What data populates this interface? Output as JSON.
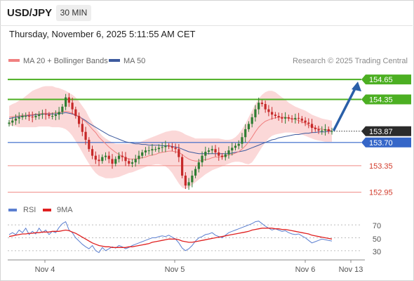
{
  "header": {
    "symbol": "USD/JPY",
    "timeframe": "30 MIN",
    "timestamp": "Thursday, November 6, 2025 5:11:55 AM CET"
  },
  "colors": {
    "price_up": "#2e7d32",
    "price_down": "#c62828",
    "bollinger_fill": "#fbd4d4",
    "ma20": "#f08080",
    "ma50": "#3d5a9e",
    "resistance": "#4caf22",
    "support": "#f08a84",
    "pivot": "#3566c8",
    "current": "#2b2b2b",
    "arrow": "#2a5fa8",
    "rsi": "#5b7fd0",
    "rsi_ma": "#e02020"
  },
  "chart_data": [
    {
      "type": "line",
      "title": "USD/JPY",
      "attribution": "Research © 2025 Trading Central",
      "legend": [
        {
          "label": "MA 20 + Bollinger Bands",
          "color": "#f08080"
        },
        {
          "label": "MA 50",
          "color": "#3d5a9e"
        }
      ],
      "legend_position": "top-left",
      "x_ticks": [
        "Nov 4",
        "Nov 5",
        "Nov 6",
        "Nov 13"
      ],
      "ylim": [
        152.85,
        154.8
      ],
      "levels": [
        {
          "value": 154.65,
          "label": "154.65",
          "kind": "resistance"
        },
        {
          "value": 154.35,
          "label": "154.35",
          "kind": "resistance"
        },
        {
          "value": 153.87,
          "label": "153.87",
          "kind": "current"
        },
        {
          "value": 153.7,
          "label": "153.70",
          "kind": "pivot"
        },
        {
          "value": 153.35,
          "label": "153.35",
          "kind": "support"
        },
        {
          "value": 152.95,
          "label": "152.95",
          "kind": "support"
        }
      ],
      "forecast_arrow": {
        "from": 153.87,
        "to": 154.65
      },
      "series": [
        {
          "name": "USD/JPY",
          "kind": "close",
          "values": [
            154.0,
            154.03,
            154.06,
            154.08,
            154.1,
            154.1,
            154.09,
            154.08,
            154.1,
            154.12,
            154.13,
            154.12,
            154.1,
            154.1,
            154.12,
            154.16,
            154.24,
            154.38,
            154.3,
            154.2,
            154.1,
            153.98,
            153.86,
            153.74,
            153.6,
            153.5,
            153.44,
            153.42,
            153.48,
            153.5,
            153.45,
            153.38,
            153.45,
            153.5,
            153.48,
            153.42,
            153.38,
            153.4,
            153.45,
            153.5,
            153.55,
            153.58,
            153.58,
            153.6,
            153.6,
            153.62,
            153.63,
            153.65,
            153.64,
            153.62,
            153.6,
            153.48,
            153.2,
            153.05,
            153.1,
            153.2,
            153.3,
            153.4,
            153.5,
            153.56,
            153.58,
            153.6,
            153.55,
            153.5,
            153.48,
            153.52,
            153.58,
            153.62,
            153.65,
            153.68,
            153.78,
            153.9,
            153.98,
            154.08,
            154.2,
            154.3,
            154.28,
            154.2,
            154.16,
            154.12,
            154.1,
            154.08,
            154.06,
            154.08,
            154.06,
            154.05,
            154.07,
            154.06,
            154.03,
            154.0,
            153.98,
            153.92,
            153.9,
            153.88,
            153.88,
            153.9,
            153.87,
            153.87
          ]
        },
        {
          "name": "MA 20",
          "kind": "ma20",
          "values": [
            154.08,
            154.09,
            154.1,
            154.1,
            154.11,
            154.11,
            154.12,
            154.12,
            154.13,
            154.13,
            154.14,
            154.14,
            154.14,
            154.14,
            154.15,
            154.15,
            154.16,
            154.17,
            154.16,
            154.14,
            154.12,
            154.09,
            154.05,
            154.01,
            153.96,
            153.9,
            153.85,
            153.78,
            153.73,
            153.68,
            153.63,
            153.59,
            153.55,
            153.52,
            153.49,
            153.47,
            153.45,
            153.45,
            153.45,
            153.46,
            153.47,
            153.48,
            153.5,
            153.51,
            153.52,
            153.54,
            153.55,
            153.56,
            153.57,
            153.57,
            153.56,
            153.55,
            153.52,
            153.48,
            153.45,
            153.43,
            153.42,
            153.42,
            153.43,
            153.44,
            153.45,
            153.47,
            153.48,
            153.48,
            153.49,
            153.5,
            153.51,
            153.52,
            153.54,
            153.56,
            153.6,
            153.65,
            153.71,
            153.78,
            153.86,
            153.93,
            153.98,
            154.02,
            154.04,
            154.06,
            154.07,
            154.08,
            154.08,
            154.08,
            154.07,
            154.06,
            154.05,
            154.03,
            154.01,
            153.99,
            153.96,
            153.94,
            153.92,
            153.91,
            153.9,
            153.89,
            153.88,
            153.88
          ]
        },
        {
          "name": "MA 50",
          "kind": "ma50",
          "values": [
            154.06,
            154.07,
            154.08,
            154.09,
            154.1,
            154.1,
            154.11,
            154.11,
            154.12,
            154.12,
            154.13,
            154.13,
            154.13,
            154.13,
            154.13,
            154.14,
            154.14,
            154.15,
            154.14,
            154.13,
            154.11,
            154.09,
            154.06,
            154.03,
            153.99,
            153.96,
            153.93,
            153.9,
            153.87,
            153.84,
            153.81,
            153.79,
            153.77,
            153.75,
            153.73,
            153.71,
            153.7,
            153.69,
            153.68,
            153.68,
            153.67,
            153.67,
            153.66,
            153.66,
            153.66,
            153.66,
            153.65,
            153.65,
            153.65,
            153.64,
            153.63,
            153.62,
            153.6,
            153.58,
            153.56,
            153.55,
            153.54,
            153.53,
            153.53,
            153.53,
            153.53,
            153.53,
            153.53,
            153.53,
            153.53,
            153.53,
            153.53,
            153.54,
            153.55,
            153.56,
            153.57,
            153.58,
            153.6,
            153.62,
            153.64,
            153.66,
            153.68,
            153.7,
            153.72,
            153.74,
            153.75,
            153.77,
            153.78,
            153.79,
            153.8,
            153.81,
            153.82,
            153.82,
            153.83,
            153.84,
            153.84,
            153.85,
            153.85,
            153.86,
            153.86,
            153.86,
            153.87,
            153.87
          ]
        },
        {
          "name": "Bollinger upper",
          "kind": "bb_upper",
          "values": [
            154.25,
            154.28,
            154.3,
            154.33,
            154.36,
            154.4,
            154.44,
            154.48,
            154.5,
            154.52,
            154.54,
            154.55,
            154.55,
            154.55,
            154.53,
            154.52,
            154.5,
            154.48,
            154.45,
            154.42,
            154.38,
            154.32,
            154.25,
            154.18,
            154.08,
            154.0,
            153.92,
            153.86,
            153.8,
            153.76,
            153.73,
            153.7,
            153.68,
            153.68,
            153.68,
            153.68,
            153.68,
            153.68,
            153.69,
            153.7,
            153.72,
            153.74,
            153.76,
            153.78,
            153.8,
            153.82,
            153.84,
            153.86,
            153.87,
            153.88,
            153.88,
            153.87,
            153.85,
            153.82,
            153.8,
            153.78,
            153.76,
            153.76,
            153.76,
            153.76,
            153.76,
            153.76,
            153.76,
            153.76,
            153.75,
            153.74,
            153.74,
            153.75,
            153.78,
            153.83,
            153.9,
            153.98,
            154.08,
            154.18,
            154.28,
            154.36,
            154.42,
            154.46,
            154.48,
            154.48,
            154.46,
            154.42,
            154.38,
            154.35,
            154.3,
            154.27,
            154.24,
            154.22,
            154.2,
            154.18,
            154.15,
            154.12,
            154.1,
            154.08,
            154.06,
            154.05,
            154.04,
            154.03
          ]
        },
        {
          "name": "Bollinger lower",
          "kind": "bb_lower",
          "values": [
            153.96,
            153.95,
            153.94,
            153.93,
            153.93,
            153.93,
            153.93,
            153.93,
            153.93,
            153.94,
            153.94,
            153.94,
            153.94,
            153.93,
            153.93,
            153.93,
            153.92,
            153.9,
            153.86,
            153.8,
            153.72,
            153.64,
            153.55,
            153.46,
            153.38,
            153.3,
            153.24,
            153.2,
            153.18,
            153.16,
            153.16,
            153.16,
            153.17,
            153.18,
            153.2,
            153.22,
            153.24,
            153.25,
            153.27,
            153.29,
            153.31,
            153.33,
            153.35,
            153.36,
            153.37,
            153.37,
            153.36,
            153.34,
            153.3,
            153.24,
            153.16,
            153.08,
            153.02,
            153.0,
            153.02,
            153.06,
            153.1,
            153.14,
            153.18,
            153.22,
            153.25,
            153.28,
            153.3,
            153.32,
            153.34,
            153.36,
            153.38,
            153.4,
            153.41,
            153.41,
            153.4,
            153.38,
            153.37,
            153.4,
            153.47,
            153.55,
            153.63,
            153.7,
            153.76,
            153.8,
            153.82,
            153.83,
            153.84,
            153.85,
            153.85,
            153.85,
            153.84,
            153.83,
            153.82,
            153.8,
            153.78,
            153.76,
            153.74,
            153.73,
            153.72,
            153.71,
            153.71,
            153.71
          ]
        }
      ]
    },
    {
      "type": "line",
      "legend": [
        {
          "label": "RSI",
          "color": "#5b7fd0"
        },
        {
          "label": "9MA",
          "color": "#e02020"
        }
      ],
      "legend_position": "top-left",
      "y_ticks": [
        "70",
        "50",
        "30"
      ],
      "ylim": [
        20,
        80
      ],
      "series": [
        {
          "name": "RSI",
          "kind": "rsi",
          "values": [
            55,
            58,
            55,
            62,
            58,
            65,
            55,
            60,
            56,
            65,
            58,
            62,
            55,
            60,
            58,
            66,
            72,
            75,
            62,
            58,
            50,
            45,
            40,
            36,
            33,
            38,
            30,
            27,
            35,
            30,
            33,
            36,
            34,
            38,
            36,
            33,
            35,
            38,
            40,
            42,
            44,
            46,
            48,
            50,
            50,
            52,
            53,
            52,
            54,
            51,
            48,
            42,
            34,
            30,
            33,
            38,
            45,
            50,
            52,
            55,
            56,
            58,
            54,
            52,
            50,
            54,
            58,
            60,
            62,
            64,
            66,
            68,
            70,
            72,
            75,
            76,
            72,
            68,
            65,
            62,
            64,
            62,
            60,
            61,
            58,
            56,
            55,
            56,
            53,
            50,
            46,
            42,
            44,
            46,
            48,
            47,
            46,
            45
          ]
        },
        {
          "name": "9MA",
          "kind": "rsi_ma",
          "values": [
            52,
            53,
            54,
            55,
            56,
            56,
            57,
            57,
            58,
            58,
            59,
            59,
            59,
            60,
            60,
            60,
            61,
            62,
            61,
            59,
            57,
            54,
            51,
            48,
            45,
            42,
            40,
            38,
            37,
            36,
            36,
            35,
            35,
            35,
            35,
            35,
            36,
            36,
            37,
            38,
            39,
            40,
            41,
            43,
            44,
            45,
            46,
            47,
            48,
            48,
            48,
            47,
            45,
            44,
            43,
            43,
            44,
            45,
            46,
            47,
            48,
            49,
            50,
            51,
            52,
            53,
            54,
            55,
            56,
            57,
            58,
            59,
            60,
            62,
            63,
            64,
            65,
            65,
            65,
            65,
            64,
            64,
            63,
            63,
            62,
            61,
            60,
            59,
            58,
            57,
            56,
            54,
            53,
            52,
            51,
            50,
            49,
            48
          ]
        }
      ]
    }
  ]
}
